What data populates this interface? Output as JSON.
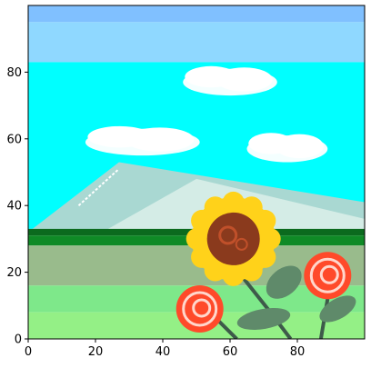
{
  "chart_data": {
    "type": "heatmap",
    "title": "",
    "xlabel": "",
    "ylabel": "",
    "xlim": [
      0,
      100
    ],
    "ylim": [
      0,
      100
    ],
    "xticks": [
      0,
      20,
      40,
      60,
      80
    ],
    "yticks": [
      0,
      20,
      40,
      60,
      80
    ],
    "grid": false,
    "image": {
      "description": "pixel-art image rendered with imshow",
      "sky_bands": [
        {
          "y": [
            95,
            100
          ],
          "color": "#80c0ff"
        },
        {
          "y": [
            83,
            95
          ],
          "color": "#8fd8ff"
        },
        {
          "y": [
            33,
            83
          ],
          "color": "#00ffff"
        }
      ],
      "clouds": [
        {
          "center": [
            34,
            59
          ],
          "size": [
            34,
            8
          ]
        },
        {
          "center": [
            60,
            77
          ],
          "size": [
            28,
            8
          ]
        },
        {
          "center": [
            77,
            57
          ],
          "size": [
            24,
            8
          ]
        }
      ],
      "mountains": [
        {
          "peak": [
            27,
            53
          ],
          "base": [
            0,
            100
          ],
          "color": "#a9d8d2"
        },
        {
          "peak": [
            50,
            48
          ],
          "base": [
            22,
            100
          ],
          "color": "#d4ece6"
        }
      ],
      "ground_bands": [
        {
          "y": [
            31,
            33
          ],
          "color": "#0b6a1e"
        },
        {
          "y": [
            28,
            31
          ],
          "color": "#0f8a26"
        },
        {
          "y": [
            16,
            28
          ],
          "color": "#99bb8c"
        },
        {
          "y": [
            8,
            16
          ],
          "color": "#7ee88a"
        },
        {
          "y": [
            0,
            8
          ],
          "color": "#94f086"
        }
      ],
      "sunflower": {
        "center": [
          61,
          30
        ],
        "petal_color": "#ffd21a",
        "center_color": "#8a3a1d"
      },
      "roses": [
        {
          "center": [
            51,
            9
          ],
          "color": "#ff4a2a"
        },
        {
          "center": [
            89,
            19
          ],
          "color": "#ff4a2a"
        }
      ],
      "leaf_color": "#5f8a6a"
    }
  }
}
